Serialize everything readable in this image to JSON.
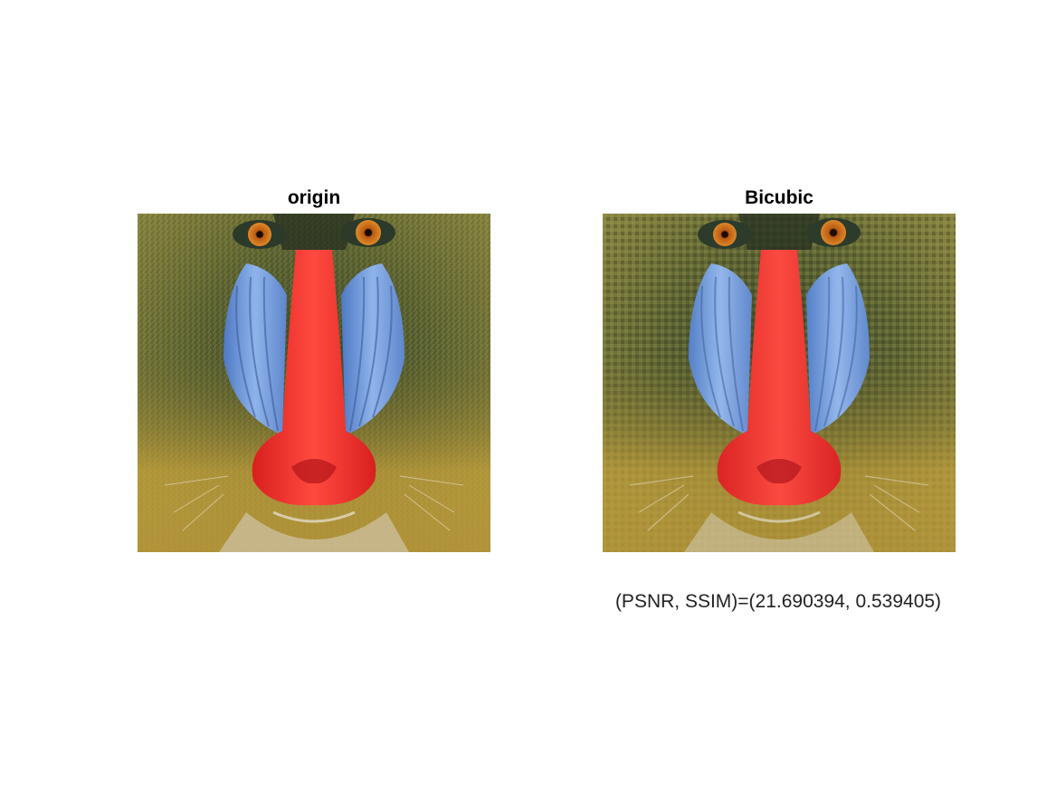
{
  "figure": {
    "panels": [
      {
        "title": "origin",
        "subject": "mandrill-face",
        "variant": "original"
      },
      {
        "title": "Bicubic",
        "subject": "mandrill-face",
        "variant": "bicubic-upscaled"
      }
    ],
    "metrics_caption": "(PSNR, SSIM)=(21.690394, 0.539405)",
    "colors": {
      "background": "#ffffff",
      "fur": "#6b6a2e",
      "cheek_blue": "#7aa6e0",
      "nose_red": "#f02828",
      "eye_orange": "#d2741c"
    }
  }
}
